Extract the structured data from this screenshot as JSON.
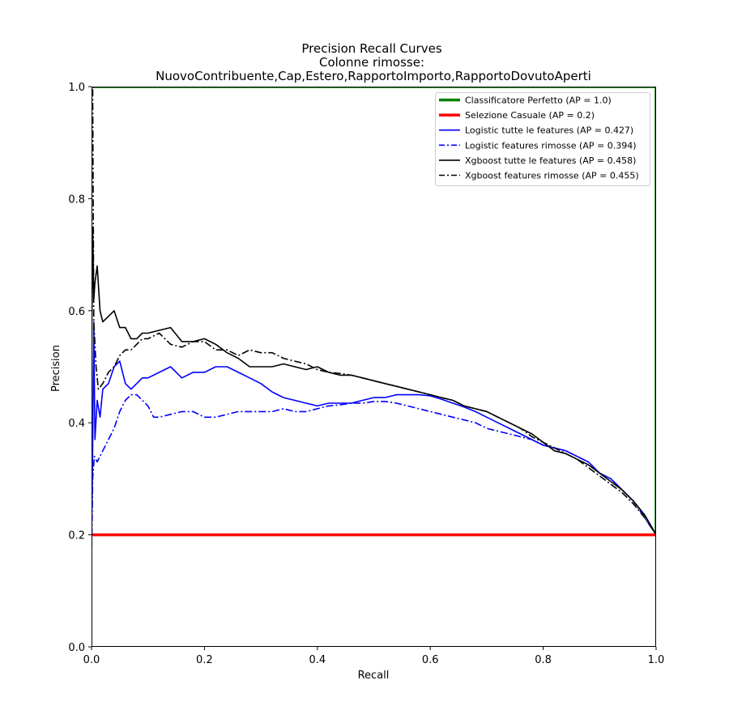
{
  "chart_data": {
    "type": "line",
    "title_lines": [
      "Precision Recall Curves",
      "Colonne rimosse:",
      "NuovoContribuente,Cap,Estero,RapportoImporto,RapportoDovutoAperti"
    ],
    "xlabel": "Recall",
    "ylabel": "Precision",
    "xlim": [
      0,
      1
    ],
    "ylim": [
      0,
      1
    ],
    "xticks": [
      "0.0",
      "0.2",
      "0.4",
      "0.6",
      "0.8",
      "1.0"
    ],
    "yticks": [
      "0.0",
      "0.2",
      "0.4",
      "0.6",
      "0.8",
      "1.0"
    ],
    "grid": false,
    "legend_position": "top-right",
    "series": [
      {
        "name": "Classificatore Perfetto (AP = 1.0)",
        "color": "#008000",
        "dash": "solid",
        "width": "thick",
        "x": [
          0,
          1,
          1
        ],
        "y": [
          1,
          1,
          0.2
        ]
      },
      {
        "name": "Selezione Casuale (AP = 0.2)",
        "color": "#ff0000",
        "dash": "solid",
        "width": "thick",
        "x": [
          0,
          1
        ],
        "y": [
          0.2,
          0.2
        ]
      },
      {
        "name": "Logistic tutte le features (AP = 0.427)",
        "color": "#0000ff",
        "dash": "solid",
        "width": "normal",
        "x": [
          0.0,
          0.002,
          0.004,
          0.006,
          0.01,
          0.015,
          0.02,
          0.03,
          0.04,
          0.05,
          0.06,
          0.07,
          0.08,
          0.09,
          0.1,
          0.12,
          0.14,
          0.16,
          0.18,
          0.2,
          0.22,
          0.24,
          0.26,
          0.28,
          0.3,
          0.32,
          0.34,
          0.36,
          0.38,
          0.4,
          0.42,
          0.44,
          0.46,
          0.48,
          0.5,
          0.52,
          0.54,
          0.56,
          0.58,
          0.6,
          0.62,
          0.64,
          0.66,
          0.68,
          0.7,
          0.72,
          0.74,
          0.76,
          0.78,
          0.8,
          0.82,
          0.84,
          0.86,
          0.88,
          0.9,
          0.92,
          0.94,
          0.96,
          0.98,
          1.0
        ],
        "y": [
          0.2,
          0.35,
          0.58,
          0.37,
          0.44,
          0.41,
          0.46,
          0.47,
          0.5,
          0.51,
          0.47,
          0.46,
          0.47,
          0.48,
          0.48,
          0.49,
          0.5,
          0.48,
          0.49,
          0.49,
          0.5,
          0.5,
          0.49,
          0.48,
          0.47,
          0.455,
          0.445,
          0.44,
          0.435,
          0.43,
          0.435,
          0.435,
          0.435,
          0.44,
          0.445,
          0.445,
          0.45,
          0.45,
          0.45,
          0.448,
          0.442,
          0.435,
          0.428,
          0.42,
          0.41,
          0.4,
          0.39,
          0.38,
          0.37,
          0.36,
          0.355,
          0.35,
          0.34,
          0.33,
          0.31,
          0.3,
          0.28,
          0.26,
          0.235,
          0.2
        ]
      },
      {
        "name": "Logistic features rimosse (AP = 0.394)",
        "color": "#0000ff",
        "dash": "dashdot",
        "width": "normal",
        "x": [
          0.0,
          0.002,
          0.005,
          0.01,
          0.02,
          0.03,
          0.04,
          0.05,
          0.06,
          0.07,
          0.08,
          0.09,
          0.1,
          0.11,
          0.12,
          0.14,
          0.16,
          0.18,
          0.2,
          0.22,
          0.24,
          0.26,
          0.28,
          0.3,
          0.32,
          0.34,
          0.36,
          0.38,
          0.4,
          0.42,
          0.44,
          0.46,
          0.48,
          0.5,
          0.52,
          0.54,
          0.56,
          0.58,
          0.6,
          0.62,
          0.64,
          0.66,
          0.68,
          0.7,
          0.72,
          0.74,
          0.76,
          0.78,
          0.8,
          0.82,
          0.84,
          0.86,
          0.88,
          0.9,
          0.92,
          0.94,
          0.96,
          0.98,
          1.0
        ],
        "y": [
          0.15,
          0.3,
          0.34,
          0.33,
          0.35,
          0.37,
          0.39,
          0.42,
          0.44,
          0.45,
          0.45,
          0.44,
          0.43,
          0.41,
          0.41,
          0.415,
          0.42,
          0.42,
          0.41,
          0.41,
          0.415,
          0.42,
          0.42,
          0.42,
          0.42,
          0.425,
          0.42,
          0.42,
          0.425,
          0.43,
          0.432,
          0.435,
          0.435,
          0.438,
          0.438,
          0.435,
          0.43,
          0.425,
          0.42,
          0.415,
          0.41,
          0.405,
          0.4,
          0.39,
          0.385,
          0.38,
          0.375,
          0.37,
          0.36,
          0.355,
          0.35,
          0.34,
          0.33,
          0.31,
          0.3,
          0.28,
          0.26,
          0.23,
          0.2
        ]
      },
      {
        "name": "Xgboost tutte le features (AP = 0.458)",
        "color": "#000000",
        "dash": "solid",
        "width": "normal",
        "x": [
          0.0,
          0.002,
          0.004,
          0.006,
          0.01,
          0.015,
          0.02,
          0.03,
          0.04,
          0.05,
          0.06,
          0.07,
          0.08,
          0.09,
          0.1,
          0.12,
          0.14,
          0.16,
          0.18,
          0.2,
          0.22,
          0.24,
          0.26,
          0.28,
          0.3,
          0.32,
          0.34,
          0.36,
          0.38,
          0.4,
          0.42,
          0.44,
          0.46,
          0.48,
          0.5,
          0.52,
          0.54,
          0.56,
          0.58,
          0.6,
          0.62,
          0.64,
          0.66,
          0.68,
          0.7,
          0.72,
          0.74,
          0.76,
          0.78,
          0.8,
          0.82,
          0.84,
          0.86,
          0.88,
          0.9,
          0.92,
          0.94,
          0.96,
          0.98,
          1.0
        ],
        "y": [
          0.5,
          0.75,
          0.62,
          0.65,
          0.68,
          0.6,
          0.58,
          0.59,
          0.6,
          0.57,
          0.57,
          0.55,
          0.55,
          0.56,
          0.56,
          0.565,
          0.57,
          0.545,
          0.545,
          0.55,
          0.54,
          0.525,
          0.515,
          0.5,
          0.5,
          0.5,
          0.505,
          0.5,
          0.495,
          0.5,
          0.49,
          0.485,
          0.485,
          0.48,
          0.475,
          0.47,
          0.465,
          0.46,
          0.455,
          0.45,
          0.445,
          0.44,
          0.43,
          0.425,
          0.42,
          0.41,
          0.4,
          0.39,
          0.38,
          0.365,
          0.35,
          0.345,
          0.335,
          0.325,
          0.31,
          0.295,
          0.28,
          0.26,
          0.235,
          0.2
        ]
      },
      {
        "name": "Xgboost features rimosse (AP = 0.455)",
        "color": "#000000",
        "dash": "dashdot",
        "width": "normal",
        "x": [
          0.0,
          0.002,
          0.004,
          0.008,
          0.012,
          0.02,
          0.03,
          0.04,
          0.05,
          0.06,
          0.07,
          0.08,
          0.09,
          0.1,
          0.12,
          0.14,
          0.16,
          0.18,
          0.2,
          0.22,
          0.24,
          0.26,
          0.28,
          0.3,
          0.32,
          0.34,
          0.36,
          0.38,
          0.4,
          0.42,
          0.44,
          0.46,
          0.48,
          0.5,
          0.52,
          0.54,
          0.56,
          0.58,
          0.6,
          0.62,
          0.64,
          0.66,
          0.68,
          0.7,
          0.72,
          0.74,
          0.76,
          0.78,
          0.8,
          0.82,
          0.84,
          0.86,
          0.88,
          0.9,
          0.92,
          0.94,
          0.96,
          0.98,
          1.0
        ],
        "y": [
          0.98,
          1.0,
          0.58,
          0.5,
          0.46,
          0.47,
          0.49,
          0.5,
          0.52,
          0.53,
          0.53,
          0.54,
          0.55,
          0.55,
          0.56,
          0.54,
          0.535,
          0.545,
          0.545,
          0.53,
          0.53,
          0.52,
          0.53,
          0.525,
          0.525,
          0.515,
          0.51,
          0.505,
          0.495,
          0.49,
          0.488,
          0.485,
          0.48,
          0.475,
          0.47,
          0.465,
          0.46,
          0.455,
          0.45,
          0.445,
          0.44,
          0.43,
          0.425,
          0.42,
          0.41,
          0.4,
          0.39,
          0.375,
          0.365,
          0.355,
          0.345,
          0.335,
          0.32,
          0.305,
          0.29,
          0.275,
          0.255,
          0.23,
          0.2
        ]
      }
    ]
  }
}
